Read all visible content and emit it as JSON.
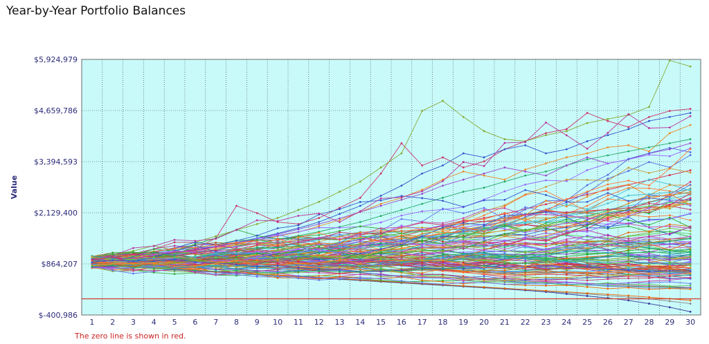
{
  "page": {
    "title": "Year-by-Year Portfolio Balances",
    "footnote": "The zero line is shown in red."
  },
  "colors": {
    "plot_background": "#c8fafa",
    "grid": "#333333",
    "zero_line": "#d04a3a",
    "axis_text": "#2b2b7a"
  },
  "chart_data": {
    "type": "line",
    "title": "Year-by-Year Portfolio Balances",
    "xlabel": "",
    "ylabel": "Value",
    "x": [
      1,
      2,
      3,
      4,
      5,
      6,
      7,
      8,
      9,
      10,
      11,
      12,
      13,
      14,
      15,
      16,
      17,
      18,
      19,
      20,
      21,
      22,
      23,
      24,
      25,
      26,
      27,
      28,
      29,
      30
    ],
    "y_ticks": [
      "$-400,986",
      "$864,207",
      "$2,129,400",
      "$3,394,593",
      "$4,659,786",
      "$5,924,979"
    ],
    "ylim": [
      -400986,
      5924979
    ],
    "zero_line": 0,
    "grid": true,
    "series_count": 120,
    "series_note_visible": "spaghetti of simulated portfolio paths",
    "series": [
      {
        "color": "#cc3366",
        "values": [
          880000,
          960000,
          1010000,
          1080000,
          1150000,
          1230000,
          1500000,
          2300000,
          2120000,
          1900000,
          1850000,
          2000000,
          2250000,
          2500000,
          3100000,
          3850000,
          3300000,
          3500000,
          3250000,
          3400000,
          3700000,
          3900000,
          4100000,
          4200000,
          4600000,
          4400000,
          4250000,
          4500000,
          4650000,
          4700000
        ]
      },
      {
        "color": "#88aa33",
        "values": [
          900000,
          980000,
          1050000,
          1150000,
          1250000,
          1400000,
          1550000,
          1700000,
          1850000,
          2000000,
          2200000,
          2400000,
          2650000,
          2900000,
          3250000,
          3600000,
          4650000,
          4900000,
          4500000,
          4150000,
          3950000,
          3900000,
          4050000,
          4150000,
          4350000,
          4450000,
          4550000,
          4750000,
          5900000,
          5750000
        ]
      },
      {
        "color": "#3355cc",
        "values": [
          920000,
          950000,
          1000000,
          1060000,
          1120000,
          1200000,
          1300000,
          1400000,
          1500000,
          1620000,
          1750000,
          1900000,
          2100000,
          2300000,
          2550000,
          2800000,
          3100000,
          3300000,
          3600000,
          3500000,
          3700000,
          3800000,
          3600000,
          3700000,
          3900000,
          4050000,
          4200000,
          4400000,
          4500000,
          4600000
        ]
      },
      {
        "color": "#ee8822",
        "values": [
          860000,
          900000,
          960000,
          1020000,
          1100000,
          1180000,
          1250000,
          1350000,
          1450000,
          1550000,
          1650000,
          1800000,
          1950000,
          2150000,
          2350000,
          2500000,
          2700000,
          2950000,
          3150000,
          3050000,
          2950000,
          3200000,
          3350000,
          3500000,
          3600000,
          3750000,
          3800000,
          3650000,
          4100000,
          4300000
        ]
      },
      {
        "color": "#22aa66",
        "values": [
          870000,
          920000,
          970000,
          1030000,
          1090000,
          1150000,
          1220000,
          1300000,
          1380000,
          1470000,
          1560000,
          1660000,
          1780000,
          1900000,
          2050000,
          2200000,
          2350000,
          2500000,
          2650000,
          2750000,
          2900000,
          3050000,
          3150000,
          3300000,
          3450000,
          3550000,
          3650000,
          3750000,
          3850000,
          3950000
        ]
      },
      {
        "color": "#9944cc",
        "values": [
          890000,
          940000,
          990000,
          1060000,
          1140000,
          1220000,
          1300000,
          1390000,
          1490000,
          1600000,
          1720000,
          1850000,
          1990000,
          2150000,
          2300000,
          2450000,
          2600000,
          2800000,
          2950000,
          3100000,
          3250000,
          3150000,
          3050000,
          3300000,
          3500000,
          3350000,
          3450000,
          3600000,
          3700000,
          3850000
        ]
      },
      {
        "color": "#dd2244",
        "values": [
          850000,
          880000,
          910000,
          940000,
          980000,
          1020000,
          1060000,
          1100000,
          1150000,
          1200000,
          1260000,
          1320000,
          1390000,
          1460000,
          1540000,
          1620000,
          1710000,
          1800000,
          1900000,
          2000000,
          2100000,
          2220000,
          2340000,
          2460000,
          2580000,
          2700000,
          2820000,
          2940000,
          3060000,
          3180000
        ]
      },
      {
        "color": "#44bbcc",
        "values": [
          880000,
          900000,
          920000,
          950000,
          980000,
          1010000,
          1050000,
          1090000,
          1130000,
          1170000,
          1210000,
          1260000,
          1310000,
          1360000,
          1420000,
          1480000,
          1540000,
          1600000,
          1670000,
          1740000,
          1810000,
          1890000,
          1970000,
          2050000,
          2130000,
          2210000,
          2300000,
          2390000,
          2480000,
          2570000
        ]
      },
      {
        "color": "#aa6633",
        "values": [
          900000,
          930000,
          960000,
          980000,
          1000000,
          1020000,
          1040000,
          1060000,
          1080000,
          1100000,
          1120000,
          1140000,
          1160000,
          1180000,
          1200000,
          1220000,
          1240000,
          1260000,
          1280000,
          1300000,
          1320000,
          1340000,
          1360000,
          1380000,
          1400000,
          1420000,
          1440000,
          1460000,
          1480000,
          1500000
        ]
      },
      {
        "color": "#5566dd",
        "values": [
          870000,
          860000,
          850000,
          840000,
          830000,
          820000,
          810000,
          800000,
          790000,
          780000,
          770000,
          760000,
          750000,
          740000,
          730000,
          720000,
          710000,
          700000,
          690000,
          680000,
          670000,
          660000,
          650000,
          640000,
          630000,
          620000,
          610000,
          600000,
          590000,
          580000
        ]
      },
      {
        "color": "#cc44aa",
        "values": [
          860000,
          840000,
          820000,
          800000,
          780000,
          760000,
          740000,
          720000,
          700000,
          680000,
          660000,
          640000,
          620000,
          600000,
          580000,
          560000,
          540000,
          520000,
          500000,
          480000,
          460000,
          440000,
          420000,
          400000,
          380000,
          360000,
          340000,
          320000,
          300000,
          280000
        ]
      },
      {
        "color": "#888888",
        "values": [
          840000,
          810000,
          780000,
          750000,
          720000,
          690000,
          660000,
          630000,
          600000,
          570000,
          540000,
          510000,
          480000,
          450000,
          420000,
          390000,
          360000,
          330000,
          300000,
          270000,
          240000,
          210000,
          180000,
          150000,
          120000,
          80000,
          40000,
          0,
          -60000,
          -120000
        ]
      },
      {
        "color": "#333399",
        "values": [
          850000,
          820000,
          790000,
          760000,
          730000,
          700000,
          670000,
          640000,
          610000,
          580000,
          550000,
          520000,
          490000,
          460000,
          430000,
          400000,
          370000,
          340000,
          310000,
          280000,
          250000,
          210000,
          170000,
          120000,
          70000,
          20000,
          -40000,
          -120000,
          -210000,
          -320000
        ]
      },
      {
        "color": "#ee6600",
        "values": [
          860000,
          830000,
          800000,
          770000,
          740000,
          710000,
          680000,
          650000,
          620000,
          590000,
          560000,
          530000,
          500000,
          470000,
          440000,
          410000,
          380000,
          350000,
          320000,
          290000,
          260000,
          230000,
          200000,
          170000,
          140000,
          110000,
          80000,
          40000,
          0,
          -40000
        ]
      },
      {
        "color": "#33aa33",
        "values": [
          880000,
          890000,
          900000,
          910000,
          920000,
          930000,
          940000,
          950000,
          960000,
          970000,
          980000,
          990000,
          1000000,
          1010000,
          1020000,
          1030000,
          1040000,
          1050000,
          1060000,
          1070000,
          1080000,
          1090000,
          1100000,
          1110000,
          1120000,
          1130000,
          1140000,
          1150000,
          1160000,
          1170000
        ]
      }
    ]
  }
}
